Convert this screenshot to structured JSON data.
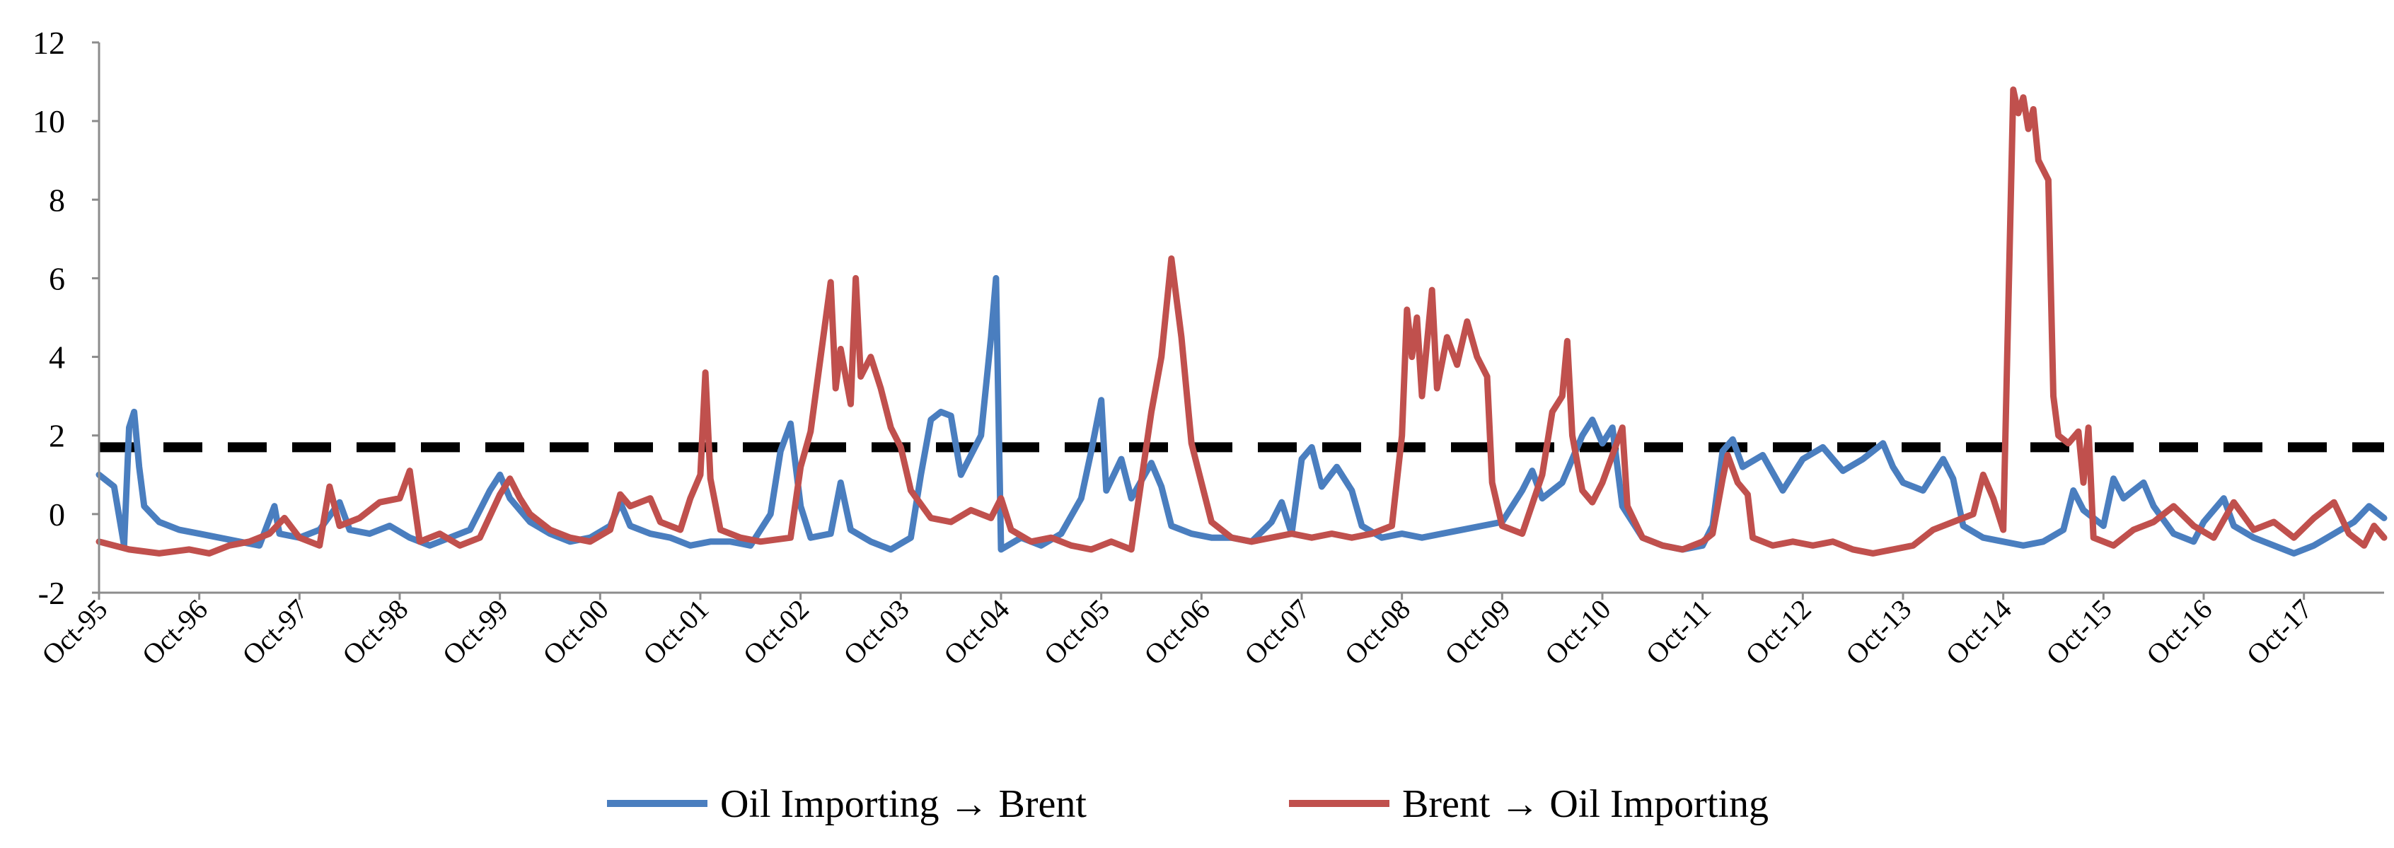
{
  "colors": {
    "oil_to_brent": "#4a7ebf",
    "brent_to_oil": "#c0504d",
    "threshold": "#000000"
  },
  "chart_data": {
    "type": "line",
    "title": "",
    "xlabel": "",
    "ylabel": "",
    "ylim": [
      -2,
      12
    ],
    "yticks": [
      -2,
      0,
      2,
      4,
      6,
      8,
      10,
      12
    ],
    "ytick_labels": [
      "-2",
      "0",
      "2",
      "4",
      "6",
      "8",
      "10",
      "12"
    ],
    "x_unit": "years since Oct-1995",
    "xlim": [
      0,
      22.8
    ],
    "xtick_labels": [
      "Oct-95",
      "Oct-96",
      "Oct-97",
      "Oct-98",
      "Oct-99",
      "Oct-00",
      "Oct-01",
      "Oct-02",
      "Oct-03",
      "Oct-04",
      "Oct-05",
      "Oct-06",
      "Oct-07",
      "Oct-08",
      "Oct-09",
      "Oct-10",
      "Oct-11",
      "Oct-12",
      "Oct-13",
      "Oct-14",
      "Oct-15",
      "Oct-16",
      "Oct-17"
    ],
    "threshold": {
      "value": 1.7,
      "style": "dashed"
    },
    "legend": {
      "placement": "bottom-center"
    },
    "series": [
      {
        "name": "Oil Importing → Brent",
        "color_key": "oil_to_brent",
        "points": [
          [
            0.0,
            1.0
          ],
          [
            0.15,
            0.7
          ],
          [
            0.25,
            -0.8
          ],
          [
            0.3,
            2.2
          ],
          [
            0.35,
            2.6
          ],
          [
            0.4,
            1.2
          ],
          [
            0.45,
            0.2
          ],
          [
            0.6,
            -0.2
          ],
          [
            0.8,
            -0.4
          ],
          [
            1.0,
            -0.5
          ],
          [
            1.2,
            -0.6
          ],
          [
            1.4,
            -0.7
          ],
          [
            1.6,
            -0.8
          ],
          [
            1.75,
            0.2
          ],
          [
            1.8,
            -0.5
          ],
          [
            2.0,
            -0.6
          ],
          [
            2.2,
            -0.4
          ],
          [
            2.4,
            0.3
          ],
          [
            2.5,
            -0.4
          ],
          [
            2.7,
            -0.5
          ],
          [
            2.9,
            -0.3
          ],
          [
            3.1,
            -0.6
          ],
          [
            3.3,
            -0.8
          ],
          [
            3.5,
            -0.6
          ],
          [
            3.7,
            -0.4
          ],
          [
            3.9,
            0.6
          ],
          [
            4.0,
            1.0
          ],
          [
            4.1,
            0.4
          ],
          [
            4.3,
            -0.2
          ],
          [
            4.5,
            -0.5
          ],
          [
            4.7,
            -0.7
          ],
          [
            4.9,
            -0.6
          ],
          [
            5.1,
            -0.3
          ],
          [
            5.2,
            0.3
          ],
          [
            5.3,
            -0.3
          ],
          [
            5.5,
            -0.5
          ],
          [
            5.7,
            -0.6
          ],
          [
            5.9,
            -0.8
          ],
          [
            6.1,
            -0.7
          ],
          [
            6.3,
            -0.7
          ],
          [
            6.5,
            -0.8
          ],
          [
            6.7,
            0.0
          ],
          [
            6.8,
            1.6
          ],
          [
            6.9,
            2.3
          ],
          [
            7.0,
            0.2
          ],
          [
            7.1,
            -0.6
          ],
          [
            7.3,
            -0.5
          ],
          [
            7.4,
            0.8
          ],
          [
            7.5,
            -0.4
          ],
          [
            7.7,
            -0.7
          ],
          [
            7.9,
            -0.9
          ],
          [
            8.1,
            -0.6
          ],
          [
            8.2,
            1.0
          ],
          [
            8.3,
            2.4
          ],
          [
            8.4,
            2.6
          ],
          [
            8.5,
            2.5
          ],
          [
            8.6,
            1.0
          ],
          [
            8.7,
            1.5
          ],
          [
            8.8,
            2.0
          ],
          [
            8.9,
            4.5
          ],
          [
            8.95,
            6.0
          ],
          [
            9.0,
            -0.9
          ],
          [
            9.2,
            -0.6
          ],
          [
            9.4,
            -0.8
          ],
          [
            9.6,
            -0.5
          ],
          [
            9.8,
            0.4
          ],
          [
            9.9,
            1.6
          ],
          [
            10.0,
            2.9
          ],
          [
            10.05,
            0.6
          ],
          [
            10.2,
            1.4
          ],
          [
            10.3,
            0.4
          ],
          [
            10.5,
            1.3
          ],
          [
            10.6,
            0.7
          ],
          [
            10.7,
            -0.3
          ],
          [
            10.9,
            -0.5
          ],
          [
            11.1,
            -0.6
          ],
          [
            11.3,
            -0.6
          ],
          [
            11.5,
            -0.7
          ],
          [
            11.7,
            -0.2
          ],
          [
            11.8,
            0.3
          ],
          [
            11.9,
            -0.5
          ],
          [
            12.0,
            1.4
          ],
          [
            12.1,
            1.7
          ],
          [
            12.2,
            0.7
          ],
          [
            12.35,
            1.2
          ],
          [
            12.5,
            0.6
          ],
          [
            12.6,
            -0.3
          ],
          [
            12.8,
            -0.6
          ],
          [
            13.0,
            -0.5
          ],
          [
            13.2,
            -0.6
          ],
          [
            13.4,
            -0.5
          ],
          [
            13.6,
            -0.4
          ],
          [
            13.8,
            -0.3
          ],
          [
            14.0,
            -0.2
          ],
          [
            14.2,
            0.6
          ],
          [
            14.3,
            1.1
          ],
          [
            14.4,
            0.4
          ],
          [
            14.6,
            0.8
          ],
          [
            14.8,
            2.0
          ],
          [
            14.9,
            2.4
          ],
          [
            15.0,
            1.8
          ],
          [
            15.1,
            2.2
          ],
          [
            15.2,
            0.2
          ],
          [
            15.4,
            -0.6
          ],
          [
            15.6,
            -0.8
          ],
          [
            15.8,
            -0.9
          ],
          [
            16.0,
            -0.8
          ],
          [
            16.1,
            -0.3
          ],
          [
            16.2,
            1.6
          ],
          [
            16.3,
            1.9
          ],
          [
            16.4,
            1.2
          ],
          [
            16.6,
            1.5
          ],
          [
            16.8,
            0.6
          ],
          [
            17.0,
            1.4
          ],
          [
            17.2,
            1.7
          ],
          [
            17.4,
            1.1
          ],
          [
            17.6,
            1.4
          ],
          [
            17.8,
            1.8
          ],
          [
            17.9,
            1.2
          ],
          [
            18.0,
            0.8
          ],
          [
            18.2,
            0.6
          ],
          [
            18.4,
            1.4
          ],
          [
            18.5,
            0.9
          ],
          [
            18.6,
            -0.3
          ],
          [
            18.8,
            -0.6
          ],
          [
            19.0,
            -0.7
          ],
          [
            19.2,
            -0.8
          ],
          [
            19.4,
            -0.7
          ],
          [
            19.6,
            -0.4
          ],
          [
            19.7,
            0.6
          ],
          [
            19.8,
            0.1
          ],
          [
            20.0,
            -0.3
          ],
          [
            20.1,
            0.9
          ],
          [
            20.2,
            0.4
          ],
          [
            20.4,
            0.8
          ],
          [
            20.5,
            0.2
          ],
          [
            20.7,
            -0.5
          ],
          [
            20.9,
            -0.7
          ],
          [
            21.0,
            -0.2
          ],
          [
            21.2,
            0.4
          ],
          [
            21.3,
            -0.3
          ],
          [
            21.5,
            -0.6
          ],
          [
            21.7,
            -0.8
          ],
          [
            21.9,
            -1.0
          ],
          [
            22.1,
            -0.8
          ],
          [
            22.3,
            -0.5
          ],
          [
            22.5,
            -0.2
          ],
          [
            22.65,
            0.2
          ],
          [
            22.8,
            -0.1
          ]
        ]
      },
      {
        "name": "Brent → Oil Importing",
        "color_key": "brent_to_oil",
        "points": [
          [
            0.0,
            -0.7
          ],
          [
            0.3,
            -0.9
          ],
          [
            0.6,
            -1.0
          ],
          [
            0.9,
            -0.9
          ],
          [
            1.1,
            -1.0
          ],
          [
            1.3,
            -0.8
          ],
          [
            1.5,
            -0.7
          ],
          [
            1.7,
            -0.5
          ],
          [
            1.85,
            -0.1
          ],
          [
            2.0,
            -0.6
          ],
          [
            2.2,
            -0.8
          ],
          [
            2.3,
            0.7
          ],
          [
            2.4,
            -0.3
          ],
          [
            2.6,
            -0.1
          ],
          [
            2.8,
            0.3
          ],
          [
            3.0,
            0.4
          ],
          [
            3.1,
            1.1
          ],
          [
            3.2,
            -0.7
          ],
          [
            3.4,
            -0.5
          ],
          [
            3.6,
            -0.8
          ],
          [
            3.8,
            -0.6
          ],
          [
            4.0,
            0.5
          ],
          [
            4.1,
            0.9
          ],
          [
            4.2,
            0.4
          ],
          [
            4.3,
            0.0
          ],
          [
            4.5,
            -0.4
          ],
          [
            4.7,
            -0.6
          ],
          [
            4.9,
            -0.7
          ],
          [
            5.1,
            -0.4
          ],
          [
            5.2,
            0.5
          ],
          [
            5.3,
            0.2
          ],
          [
            5.5,
            0.4
          ],
          [
            5.6,
            -0.2
          ],
          [
            5.8,
            -0.4
          ],
          [
            5.9,
            0.4
          ],
          [
            6.0,
            1.0
          ],
          [
            6.05,
            3.6
          ],
          [
            6.1,
            0.9
          ],
          [
            6.2,
            -0.4
          ],
          [
            6.4,
            -0.6
          ],
          [
            6.6,
            -0.7
          ],
          [
            6.9,
            -0.6
          ],
          [
            7.0,
            1.2
          ],
          [
            7.1,
            2.1
          ],
          [
            7.2,
            4.0
          ],
          [
            7.3,
            5.9
          ],
          [
            7.35,
            3.2
          ],
          [
            7.4,
            4.2
          ],
          [
            7.5,
            2.8
          ],
          [
            7.55,
            6.0
          ],
          [
            7.6,
            3.5
          ],
          [
            7.7,
            4.0
          ],
          [
            7.8,
            3.2
          ],
          [
            7.9,
            2.2
          ],
          [
            8.0,
            1.7
          ],
          [
            8.1,
            0.6
          ],
          [
            8.3,
            -0.1
          ],
          [
            8.5,
            -0.2
          ],
          [
            8.7,
            0.1
          ],
          [
            8.9,
            -0.1
          ],
          [
            9.0,
            0.4
          ],
          [
            9.1,
            -0.4
          ],
          [
            9.3,
            -0.7
          ],
          [
            9.5,
            -0.6
          ],
          [
            9.7,
            -0.8
          ],
          [
            9.9,
            -0.9
          ],
          [
            10.1,
            -0.7
          ],
          [
            10.3,
            -0.9
          ],
          [
            10.5,
            2.6
          ],
          [
            10.6,
            4.0
          ],
          [
            10.7,
            6.5
          ],
          [
            10.8,
            4.5
          ],
          [
            10.9,
            1.8
          ],
          [
            11.0,
            0.8
          ],
          [
            11.1,
            -0.2
          ],
          [
            11.3,
            -0.6
          ],
          [
            11.5,
            -0.7
          ],
          [
            11.7,
            -0.6
          ],
          [
            11.9,
            -0.5
          ],
          [
            12.1,
            -0.6
          ],
          [
            12.3,
            -0.5
          ],
          [
            12.5,
            -0.6
          ],
          [
            12.7,
            -0.5
          ],
          [
            12.9,
            -0.3
          ],
          [
            13.0,
            2.0
          ],
          [
            13.05,
            5.2
          ],
          [
            13.1,
            4.0
          ],
          [
            13.15,
            5.0
          ],
          [
            13.2,
            3.0
          ],
          [
            13.3,
            5.7
          ],
          [
            13.35,
            3.2
          ],
          [
            13.45,
            4.5
          ],
          [
            13.55,
            3.8
          ],
          [
            13.65,
            4.9
          ],
          [
            13.75,
            4.0
          ],
          [
            13.85,
            3.5
          ],
          [
            13.9,
            0.8
          ],
          [
            14.0,
            -0.3
          ],
          [
            14.2,
            -0.5
          ],
          [
            14.4,
            1.0
          ],
          [
            14.5,
            2.6
          ],
          [
            14.6,
            3.0
          ],
          [
            14.65,
            4.4
          ],
          [
            14.7,
            2.0
          ],
          [
            14.8,
            0.6
          ],
          [
            14.9,
            0.3
          ],
          [
            15.0,
            0.8
          ],
          [
            15.1,
            1.5
          ],
          [
            15.2,
            2.2
          ],
          [
            15.25,
            0.2
          ],
          [
            15.4,
            -0.6
          ],
          [
            15.6,
            -0.8
          ],
          [
            15.8,
            -0.9
          ],
          [
            16.0,
            -0.7
          ],
          [
            16.1,
            -0.5
          ],
          [
            16.2,
            0.9
          ],
          [
            16.25,
            1.5
          ],
          [
            16.35,
            0.8
          ],
          [
            16.45,
            0.5
          ],
          [
            16.5,
            -0.6
          ],
          [
            16.7,
            -0.8
          ],
          [
            16.9,
            -0.7
          ],
          [
            17.1,
            -0.8
          ],
          [
            17.3,
            -0.7
          ],
          [
            17.5,
            -0.9
          ],
          [
            17.7,
            -1.0
          ],
          [
            17.9,
            -0.9
          ],
          [
            18.1,
            -0.8
          ],
          [
            18.3,
            -0.4
          ],
          [
            18.5,
            -0.2
          ],
          [
            18.7,
            0.0
          ],
          [
            18.8,
            1.0
          ],
          [
            18.9,
            0.4
          ],
          [
            19.0,
            -0.4
          ],
          [
            19.1,
            10.8
          ],
          [
            19.15,
            10.2
          ],
          [
            19.2,
            10.6
          ],
          [
            19.25,
            9.8
          ],
          [
            19.3,
            10.3
          ],
          [
            19.35,
            9.0
          ],
          [
            19.45,
            8.5
          ],
          [
            19.5,
            3.0
          ],
          [
            19.55,
            2.0
          ],
          [
            19.65,
            1.8
          ],
          [
            19.75,
            2.1
          ],
          [
            19.8,
            0.8
          ],
          [
            19.85,
            2.2
          ],
          [
            19.9,
            -0.6
          ],
          [
            20.1,
            -0.8
          ],
          [
            20.3,
            -0.4
          ],
          [
            20.5,
            -0.2
          ],
          [
            20.7,
            0.2
          ],
          [
            20.9,
            -0.3
          ],
          [
            21.1,
            -0.6
          ],
          [
            21.3,
            0.3
          ],
          [
            21.5,
            -0.4
          ],
          [
            21.7,
            -0.2
          ],
          [
            21.9,
            -0.6
          ],
          [
            22.1,
            -0.1
          ],
          [
            22.3,
            0.3
          ],
          [
            22.45,
            -0.5
          ],
          [
            22.6,
            -0.8
          ],
          [
            22.7,
            -0.3
          ],
          [
            22.8,
            -0.6
          ]
        ]
      }
    ]
  }
}
